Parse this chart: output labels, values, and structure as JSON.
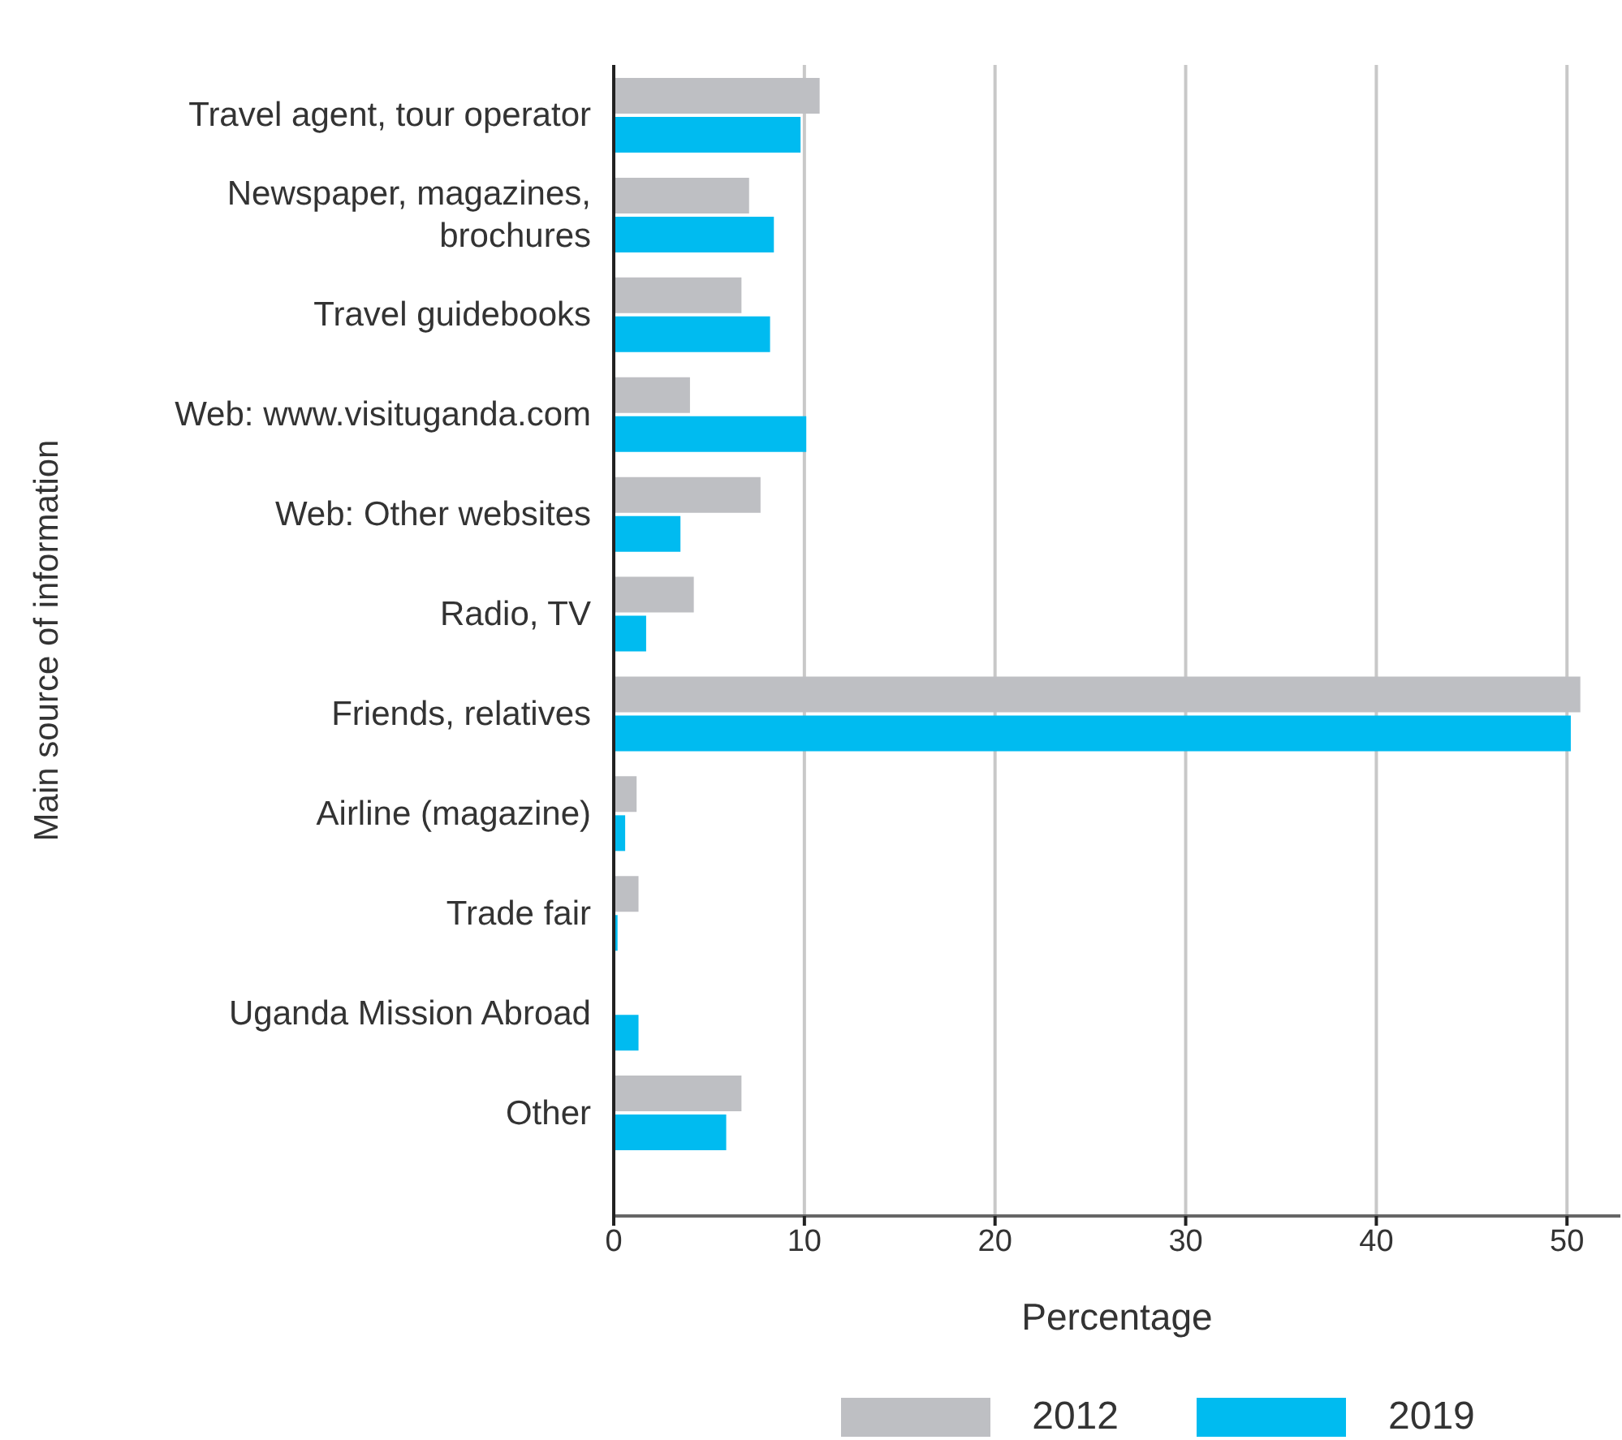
{
  "chart_data": {
    "type": "bar",
    "orientation": "horizontal",
    "xlabel": "Percentage",
    "ylabel": "Main source of information",
    "categories": [
      "Travel agent, tour operator",
      "Newspaper, magazines, brochures",
      "Travel guidebooks",
      "Web: www.visituganda.com",
      "Web: Other websites",
      "Radio, TV",
      "Friends, relatives",
      "Airline (magazine)",
      "Trade fair",
      "Uganda Mission Abroad",
      "Other"
    ],
    "series": [
      {
        "name": "2012",
        "color": "#bebfc3",
        "values": [
          10.8,
          7.1,
          6.7,
          4.0,
          7.7,
          4.2,
          50.7,
          1.2,
          1.3,
          null,
          6.7
        ]
      },
      {
        "name": "2019",
        "color": "#00bbf0",
        "values": [
          9.8,
          8.4,
          8.2,
          10.1,
          3.5,
          1.7,
          50.2,
          0.6,
          0.2,
          1.3,
          5.9
        ]
      }
    ],
    "xlim": [
      0,
      52.8
    ],
    "xticks": [
      0,
      10,
      20,
      30,
      40,
      50
    ],
    "grid": "x",
    "legend": "bottom"
  }
}
